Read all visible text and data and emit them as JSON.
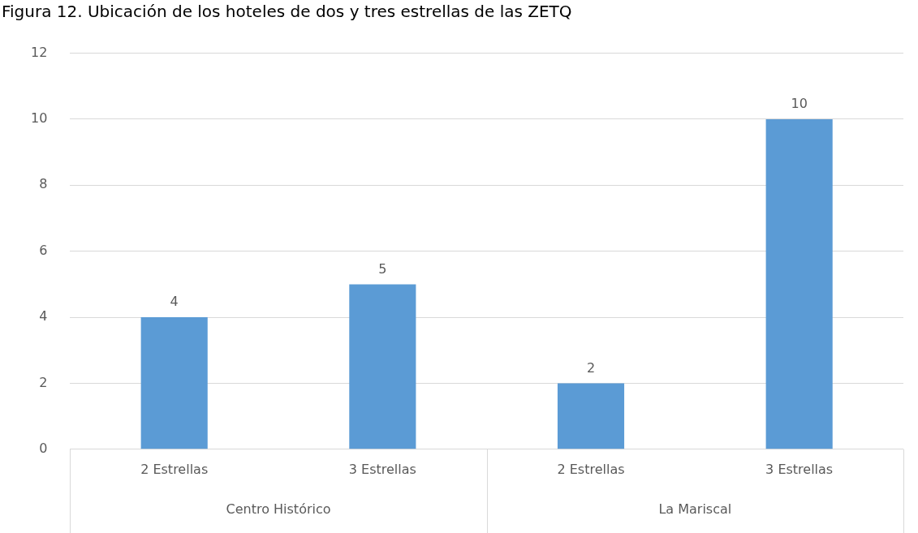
{
  "chart_data": {
    "type": "bar",
    "title": "Figura 12. Ubicación de los hoteles de dos y tres estrellas de las ZETQ",
    "categories": [
      "2 Estrellas",
      "3 Estrellas",
      "2 Estrellas",
      "3 Estrellas"
    ],
    "values": [
      4,
      5,
      2,
      10
    ],
    "color": "#5b9bd5",
    "ylim": [
      0,
      12
    ],
    "yticks": [
      0,
      2,
      4,
      6,
      8,
      10,
      12
    ],
    "grid": "y",
    "data_labels": true,
    "legend": false,
    "annotations": [
      "Centro Histórico",
      "La Mariscal"
    ]
  }
}
